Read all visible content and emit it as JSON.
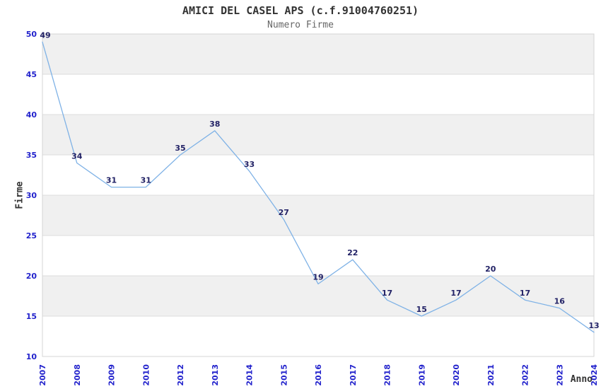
{
  "chart_data": {
    "type": "line",
    "title": "AMICI DEL CASEL APS (c.f.91004760251)",
    "subtitle": "Numero Firme",
    "xlabel": "Anno",
    "ylabel": "Firme",
    "categories": [
      "2007",
      "2008",
      "2009",
      "2010",
      "2012",
      "2013",
      "2014",
      "2015",
      "2016",
      "2017",
      "2018",
      "2019",
      "2020",
      "2021",
      "2022",
      "2023",
      "2024"
    ],
    "values": [
      49,
      34,
      31,
      31,
      35,
      38,
      33,
      27,
      19,
      22,
      17,
      15,
      17,
      20,
      17,
      16,
      13
    ],
    "point_labels": [
      "49",
      "34",
      "31",
      "31",
      "35",
      "38",
      "33",
      "27",
      "19",
      "22",
      "17",
      "15",
      "17",
      "20",
      "17",
      "16",
      "13"
    ],
    "ylim": [
      10,
      50
    ],
    "yticks": [
      10,
      15,
      20,
      25,
      30,
      35,
      40,
      45,
      50
    ],
    "grid": "horizontal",
    "legend": "none",
    "gray_bands": [
      [
        15,
        20
      ],
      [
        25,
        30
      ],
      [
        35,
        40
      ],
      [
        45,
        50
      ]
    ],
    "x_tick_rotation": -90,
    "colors": {
      "line": "#7FB2E6",
      "tick_labels": "#2222CC",
      "point_labels": "#222266",
      "band_fill": "#F0F0F0",
      "grid_line": "#DCDCDC",
      "plot_border": "#D4D4D4",
      "title": "#333333",
      "subtitle": "#666666",
      "axis_title": "#333333",
      "background": "#FFFFFF"
    }
  }
}
